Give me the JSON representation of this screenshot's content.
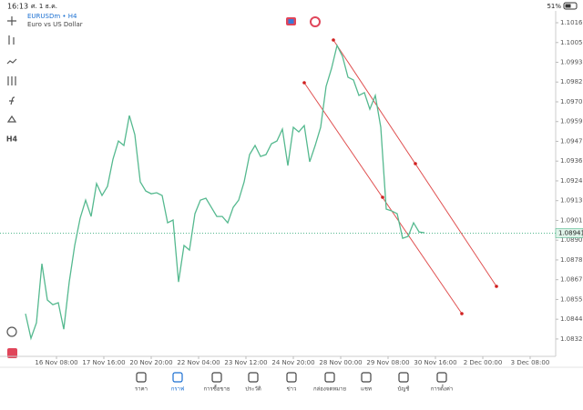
{
  "status": {
    "time": "16:13",
    "date": "ศ. 1 ธ.ค.",
    "battery": "51%"
  },
  "toolbar": {
    "timeframe": "H4"
  },
  "chart_data": {
    "type": "line",
    "title": "EURUSDm • H4",
    "subtitle": "Euro vs US Dollar",
    "color": "#55b98f",
    "values": [
      1.08472,
      1.08329,
      1.08419,
      1.08763,
      1.08552,
      1.08525,
      1.08536,
      1.08382,
      1.08657,
      1.08869,
      1.09028,
      1.09133,
      1.09038,
      1.09229,
      1.0916,
      1.09213,
      1.09371,
      1.09477,
      1.09451,
      1.09625,
      1.09514,
      1.09239,
      1.09186,
      1.0917,
      1.09176,
      1.0916,
      1.09001,
      1.09017,
      1.08657,
      1.08869,
      1.08842,
      1.09054,
      1.09133,
      1.09144,
      1.09091,
      1.09038,
      1.09038,
      1.09001,
      1.09091,
      1.09133,
      1.09239,
      1.09398,
      1.09451,
      1.09387,
      1.09398,
      1.09461,
      1.09477,
      1.09546,
      1.09334,
      1.09557,
      1.0953,
      1.09567,
      1.09356,
      1.09451,
      1.09557,
      1.09795,
      1.099,
      1.10033,
      1.09969,
      1.09848,
      1.09832,
      1.09742,
      1.09758,
      1.09662,
      1.09742,
      1.09557,
      1.09081,
      1.0907,
      1.09054,
      1.08911,
      1.08922,
      1.09001,
      1.08948,
      1.08943
    ],
    "xlim": [
      0,
      97
    ],
    "xticks": [
      {
        "value": 5.67,
        "label": "16 Nov 08:00"
      },
      {
        "value": 14.33,
        "label": "17 Nov 16:00"
      },
      {
        "value": 23,
        "label": "20 Nov 20:00"
      },
      {
        "value": 31.67,
        "label": "22 Nov 04:00"
      },
      {
        "value": 40.33,
        "label": "23 Nov 12:00"
      },
      {
        "value": 49,
        "label": "24 Nov 20:00"
      },
      {
        "value": 57.67,
        "label": "28 Nov 00:00"
      },
      {
        "value": 66.33,
        "label": "29 Nov 08:00"
      },
      {
        "value": 75,
        "label": "30 Nov 16:00"
      },
      {
        "value": 83.67,
        "label": "2 Dec 00:00"
      },
      {
        "value": 92.33,
        "label": "3 Dec 08:00"
      }
    ],
    "ylim": [
      1.08224,
      1.10218
    ],
    "yticks": [
      1.10165,
      {
        "value": 1.1005,
        "label": "1.10050"
      },
      1.09935,
      {
        "value": 1.0982,
        "label": "1.09820"
      },
      1.09705,
      {
        "value": 1.0959,
        "label": "1.09590"
      },
      1.09475,
      1.0936,
      1.09245,
      {
        "value": 1.0913,
        "label": "1.09130"
      },
      1.09015,
      {
        "value": 1.089,
        "label": "1.08900"
      },
      1.08785,
      {
        "value": 1.0867,
        "label": "1.08670"
      },
      1.08555,
      1.0844,
      1.08325
    ],
    "current_price": 1.08941
  },
  "nav": [
    "ราคา",
    "กราฟ",
    "การซื้อขาย",
    "ประวัติ",
    "ข่าว",
    "กล่องจดหมาย",
    "แชท",
    "บัญชี",
    "การตั้งค่า"
  ]
}
